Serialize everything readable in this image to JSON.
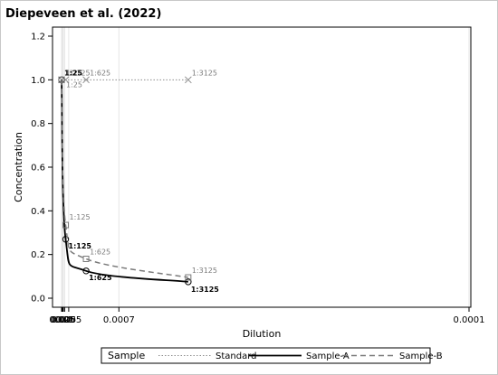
{
  "chart_data": {
    "type": "line",
    "title": "Diepeveen et al. (2022)",
    "xlabel": "Dilution",
    "ylabel": "Concentration",
    "ylim": [
      0.0,
      1.2
    ],
    "x_scale": "reciprocal",
    "x_lim": [
      0.04,
      0.0001
    ],
    "x_ticks": [
      0.04,
      0.035,
      0.03,
      0.025,
      0.02,
      0.015,
      0.01,
      0.005,
      0.0007,
      0.0001
    ],
    "x_tick_labels": [
      "0.04",
      "",
      "",
      "0.025",
      "",
      "0.015",
      "0.01",
      "0.005",
      "0.0007",
      "0.0001"
    ],
    "y_ticks": [
      0.0,
      0.2,
      0.4,
      0.6,
      0.8,
      1.0,
      1.2
    ],
    "y_tick_labels": [
      "0.0",
      "0.2",
      "0.4",
      "0.6",
      "0.8",
      "1.0",
      "1.2"
    ],
    "grid": true,
    "series": [
      {
        "name": "Standard",
        "style": "dotted",
        "marker": "x",
        "color": "#8c8c8c",
        "points": [
          {
            "x": 0.04,
            "y": 1.0,
            "label": "1:25"
          },
          {
            "x": 0.008,
            "y": 1.0,
            "label": "1:125"
          },
          {
            "x": 0.0016,
            "y": 1.0,
            "label": "1:625"
          },
          {
            "x": 0.00032,
            "y": 1.0,
            "label": "1:3125"
          }
        ]
      },
      {
        "name": "Sample-A",
        "style": "solid",
        "marker": "circle",
        "color": "#000000",
        "points": [
          {
            "x": 0.04,
            "y": 1.0,
            "label": "1:25"
          },
          {
            "x": 0.008,
            "y": 0.27,
            "label": "1:125"
          },
          {
            "x": 0.0016,
            "y": 0.125,
            "label": "1:625"
          },
          {
            "x": 0.00032,
            "y": 0.075,
            "label": "1:3125"
          }
        ]
      },
      {
        "name": "Sample-B",
        "style": "dashed",
        "marker": "square",
        "color": "#7a7a7a",
        "points": [
          {
            "x": 0.04,
            "y": 1.0,
            "label": "1:25"
          },
          {
            "x": 0.008,
            "y": 0.335,
            "label": "1:125"
          },
          {
            "x": 0.0016,
            "y": 0.18,
            "label": "1:625"
          },
          {
            "x": 0.00032,
            "y": 0.095,
            "label": "1:3125"
          }
        ]
      }
    ],
    "legend": {
      "title": "Sample",
      "placement": "bottom",
      "entries": [
        "Standard",
        "Sample-A",
        "Sample-B"
      ]
    }
  }
}
